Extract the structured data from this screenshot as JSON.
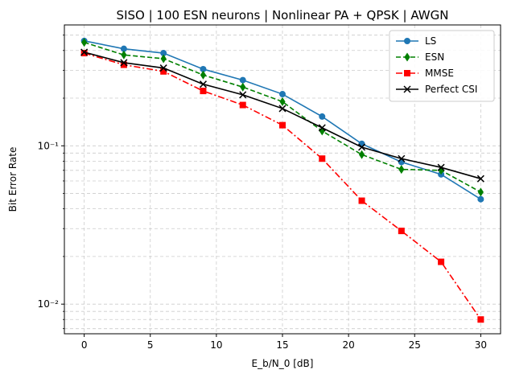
{
  "chart_data": {
    "type": "line",
    "title": "SISO | 100 ESN neurons | Nonlinear PA + QPSK | AWGN",
    "xlabel": "E_b/N_0 [dB]",
    "ylabel": "Bit Error Rate",
    "xscale": "linear",
    "yscale": "log",
    "xlim": [
      -1.5,
      31.5
    ],
    "ylim": [
      0.0065,
      0.58
    ],
    "xticks": [
      0,
      5,
      10,
      15,
      20,
      25,
      30
    ],
    "xtick_labels": [
      "0",
      "5",
      "10",
      "15",
      "20",
      "25",
      "30"
    ],
    "yticks_major": [
      0.01,
      0.1
    ],
    "ytick_labels": [
      "10⁻²",
      "10⁻¹"
    ],
    "grid": true,
    "legend_position": "top-right",
    "x": [
      0,
      3,
      6,
      9,
      12,
      15,
      18,
      21,
      24,
      27,
      30
    ],
    "series": [
      {
        "name": "LS",
        "color": "#1f77b4",
        "marker": "circle",
        "linestyle": "solid",
        "values": [
          0.46,
          0.41,
          0.385,
          0.305,
          0.26,
          0.212,
          0.153,
          0.103,
          0.079,
          0.066,
          0.046
        ]
      },
      {
        "name": "ESN",
        "color": "#008000",
        "marker": "diamond",
        "linestyle": "dashed",
        "values": [
          0.45,
          0.375,
          0.355,
          0.28,
          0.235,
          0.19,
          0.124,
          0.088,
          0.071,
          0.07,
          0.051
        ]
      },
      {
        "name": "MMSE",
        "color": "#ff0000",
        "marker": "square",
        "linestyle": "dashdot",
        "values": [
          0.385,
          0.325,
          0.295,
          0.222,
          0.181,
          0.135,
          0.083,
          0.045,
          0.029,
          0.0185,
          0.008
        ]
      },
      {
        "name": "Perfect CSI",
        "color": "#000000",
        "marker": "x",
        "linestyle": "solid",
        "values": [
          0.39,
          0.335,
          0.31,
          0.245,
          0.21,
          0.172,
          0.13,
          0.098,
          0.083,
          0.073,
          0.062
        ]
      }
    ]
  }
}
